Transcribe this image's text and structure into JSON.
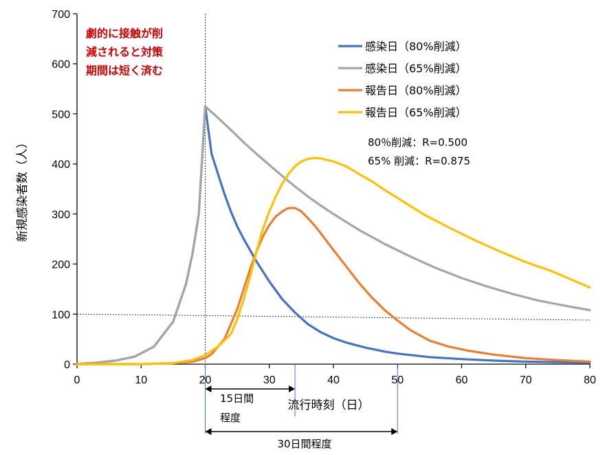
{
  "chart_data": {
    "type": "line",
    "title": "",
    "xlabel": "流行時刻（日）",
    "ylabel": "新規感染者数（人）",
    "xlim": [
      0,
      80
    ],
    "ylim": [
      0,
      700
    ],
    "x_ticks": [
      "0",
      "10",
      "20",
      "30",
      "40",
      "50",
      "60",
      "70",
      "80"
    ],
    "y_ticks": [
      "0",
      "100",
      "200",
      "300",
      "400",
      "500",
      "600",
      "700"
    ],
    "grid": false,
    "legend_position": "top-right",
    "series": [
      {
        "name": "感染日（80%削減）",
        "color": "#4472c4",
        "x": [
          0,
          3,
          6,
          9,
          12,
          15,
          17,
          18,
          19,
          20,
          21,
          22,
          23,
          24,
          25,
          26,
          28,
          30,
          32,
          34,
          36,
          38,
          40,
          42,
          45,
          48,
          50,
          55,
          60,
          65,
          70,
          75,
          80
        ],
        "y": [
          0,
          3,
          7,
          15,
          35,
          85,
          160,
          220,
          300,
          515,
          420,
          380,
          340,
          305,
          275,
          250,
          205,
          165,
          130,
          103,
          80,
          64,
          52,
          43,
          33,
          25,
          21,
          14,
          10,
          7,
          5,
          4,
          3
        ]
      },
      {
        "name": "感染日（65%削減）",
        "color": "#a5a5a5",
        "x": [
          0,
          3,
          6,
          9,
          12,
          15,
          17,
          18,
          19,
          20,
          22,
          24,
          26,
          28,
          30,
          32,
          34,
          36,
          38,
          40,
          44,
          48,
          52,
          56,
          60,
          64,
          68,
          72,
          76,
          80
        ],
        "y": [
          0,
          3,
          7,
          15,
          35,
          85,
          160,
          220,
          300,
          515,
          492,
          468,
          443,
          420,
          398,
          376,
          355,
          335,
          317,
          300,
          268,
          240,
          215,
          192,
          172,
          155,
          140,
          127,
          117,
          108
        ]
      },
      {
        "name": "報告日（80%削減）",
        "color": "#ed7d31",
        "x": [
          0,
          10,
          15,
          18,
          20,
          21,
          22,
          23,
          24,
          25,
          26,
          27,
          28,
          29,
          30,
          31,
          32,
          33,
          34,
          35,
          36,
          37,
          38,
          40,
          42,
          44,
          46,
          48,
          50,
          52,
          55,
          58,
          61,
          65,
          70,
          75,
          80
        ],
        "y": [
          0,
          0,
          2,
          5,
          12,
          20,
          35,
          50,
          80,
          110,
          150,
          190,
          225,
          255,
          278,
          295,
          305,
          312,
          312,
          305,
          292,
          278,
          262,
          228,
          195,
          162,
          133,
          108,
          87,
          68,
          47,
          35,
          27,
          19,
          12,
          8,
          5
        ]
      },
      {
        "name": "報告日（65%削減）",
        "color": "#ffc000",
        "x": [
          0,
          10,
          15,
          18,
          20,
          22,
          24,
          25,
          26,
          27,
          28,
          29,
          30,
          31,
          32,
          33,
          34,
          35,
          36,
          37,
          38,
          40,
          42,
          44,
          46,
          48,
          50,
          54,
          58,
          62,
          66,
          70,
          74,
          78,
          80
        ],
        "y": [
          0,
          0,
          2,
          8,
          18,
          35,
          60,
          90,
          130,
          175,
          225,
          270,
          305,
          335,
          360,
          380,
          395,
          405,
          410,
          412,
          411,
          405,
          395,
          380,
          365,
          348,
          332,
          300,
          273,
          248,
          225,
          204,
          186,
          164,
          153
        ]
      }
    ],
    "annotations": {
      "note": [
        "劇的に接触が削",
        "減されると対策",
        "期間は短く済む"
      ],
      "r_values": [
        "80％削減：R=0.500",
        "65% 削減：R=0.875"
      ],
      "range_15": [
        "15日間",
        "程度"
      ],
      "range_30": "30日間程度"
    }
  }
}
